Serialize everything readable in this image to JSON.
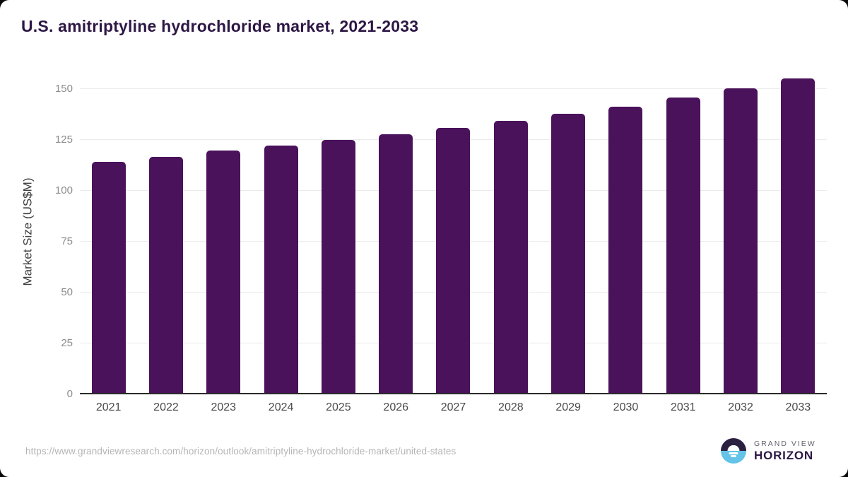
{
  "title": "U.S. amitriptyline hydrochloride market, 2021-2033",
  "chart_data": {
    "type": "bar",
    "title": "U.S. amitriptyline hydrochloride market, 2021-2033",
    "xlabel": "",
    "ylabel": "Market Size (US$M)",
    "categories": [
      "2021",
      "2022",
      "2023",
      "2024",
      "2025",
      "2026",
      "2027",
      "2028",
      "2029",
      "2030",
      "2031",
      "2032",
      "2033"
    ],
    "values": [
      114.2,
      116.7,
      119.7,
      122.2,
      124.9,
      127.8,
      130.9,
      134.3,
      137.7,
      141.4,
      145.7,
      150.3,
      155.2
    ],
    "yticks": [
      0,
      25,
      50,
      75,
      100,
      125,
      150
    ],
    "ylim": [
      0,
      160
    ],
    "grid": "horizontal",
    "legend": "none",
    "bar_color": "#4a125b"
  },
  "colors": {
    "title": "#2d1745",
    "bar": "#4a125b",
    "gridline": "#ebebeb",
    "axis_line": "#2b2b2b",
    "y_tick": "#8c8c8c",
    "x_label": "#4a4a4a",
    "url_text": "#b5b5b5",
    "logo_dark_purple": "#2c2041",
    "logo_light_blue": "#63c3e8"
  },
  "footer": {
    "source_url": "https://www.grandviewresearch.com/horizon/outlook/amitriptyline-hydrochloride-market/united-states",
    "logo_top": "GRAND VIEW",
    "logo_bottom": "HORIZON"
  }
}
